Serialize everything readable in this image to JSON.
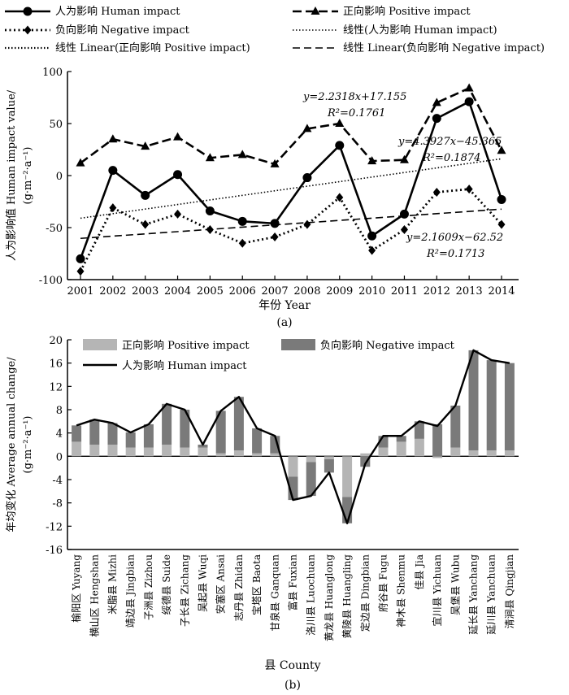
{
  "chart_data": [
    {
      "type": "line",
      "caption": "(a)",
      "xlabel": "年份 Year",
      "ylabel": "人为影响值 Human impact value/",
      "ylabel_unit": "(g·m⁻²·a⁻¹)",
      "ylim": [
        -100,
        100
      ],
      "yticks": [
        -100,
        -50,
        0,
        50,
        100
      ],
      "x": [
        "2001",
        "2002",
        "2003",
        "2004",
        "2005",
        "2006",
        "2007",
        "2008",
        "2009",
        "2010",
        "2011",
        "2012",
        "2013",
        "2014"
      ],
      "series": [
        {
          "name": "人为影响 Human impact",
          "style": "solid-circle",
          "values": [
            -80,
            5,
            -19,
            1,
            -34,
            -44,
            -46,
            -2,
            29,
            -58,
            -37,
            55,
            71,
            -23
          ]
        },
        {
          "name": "正向影响 Positive impact",
          "style": "dash-triangle",
          "values": [
            12,
            35,
            28,
            37,
            17,
            20,
            11,
            45,
            50,
            14,
            15,
            70,
            84,
            24
          ]
        },
        {
          "name": "负向影响 Negative impact",
          "style": "dot-diamond",
          "values": [
            -92,
            -31,
            -47,
            -37,
            -52,
            -65,
            -59,
            -47,
            -21,
            -72,
            -52,
            -16,
            -13,
            -47
          ]
        }
      ],
      "trendlines": [
        {
          "name": "线性(人为影响 Human impact)",
          "style": "dot",
          "slope": 4.3927,
          "intercept": -45.365,
          "equation": "y=4.3927x−45.365",
          "r2": "R²=0.1874"
        },
        {
          "name": "线性 Linear(正向影响 Positive impact)",
          "style": "dense-dot",
          "slope": 2.2318,
          "intercept": 17.155,
          "equation": "y=2.2318x+17.155",
          "r2": "R²=0.1761"
        },
        {
          "name": "线性 Linear(负向影响 Negative impact)",
          "style": "dash",
          "slope": 2.1609,
          "intercept": -62.52,
          "equation": "y=2.1609x−62.52",
          "r2": "R²=0.1713"
        }
      ]
    },
    {
      "type": "bar",
      "caption": "(b)",
      "xlabel": "县 County",
      "ylabel": "年均变化 Average annual change/",
      "ylabel_unit": "(g·m⁻²·a⁻¹)",
      "ylim": [
        -16,
        20
      ],
      "yticks": [
        -16,
        -12,
        -8,
        -4,
        0,
        4,
        8,
        12,
        16,
        20
      ],
      "categories": [
        "榆阳区 Yuyang",
        "横山区 Hengshan",
        "米脂县 Mizhi",
        "靖边县 Jingbian",
        "子洲县 Zizhou",
        "绥德县 Suide",
        "子长县 Zichang",
        "吴起县 Wuqi",
        "安塞区 Ansai",
        "志丹县 Zhidan",
        "宝塔区 Baota",
        "甘泉县 Ganquan",
        "富县 Fuxian",
        "洛川县 Luochuan",
        "黄龙县 Huanglong",
        "黄陵县 Huangling",
        "定边县 Dingbian",
        "府谷县 Fugu",
        "神木县 Shenmu",
        "佳县 Jia",
        "宜川县 Yichuan",
        "吴堡县 Wubu",
        "延长县 Yanchang",
        "延川县 Yanchuan",
        "清涧县 Qingjian"
      ],
      "series": [
        {
          "name": "正向影响 Positive impact",
          "values": [
            2.5,
            2.0,
            2.0,
            1.5,
            1.5,
            2.0,
            1.5,
            1.5,
            0.5,
            1.0,
            0.5,
            0.5,
            -3.5,
            -1.0,
            -0.5,
            -7.0,
            0.5,
            1.5,
            2.5,
            3.0,
            -0.3,
            1.5,
            1.0,
            1.0,
            1.0
          ]
        },
        {
          "name": "负向影响 Negative impact",
          "values": [
            2.8,
            4.3,
            3.7,
            2.6,
            4.0,
            7.0,
            6.5,
            0.5,
            7.3,
            9.2,
            4.3,
            3.0,
            -4.0,
            -5.8,
            -2.3,
            -4.5,
            -1.8,
            2.0,
            1.0,
            3.0,
            5.5,
            7.2,
            17.2,
            15.5,
            15.0
          ]
        },
        {
          "name": "人为影响 Human impact",
          "values": [
            5.3,
            6.3,
            5.7,
            4.1,
            5.5,
            9.0,
            8.0,
            2.0,
            7.8,
            10.2,
            4.8,
            3.5,
            -7.5,
            -6.8,
            -2.8,
            -11.5,
            -1.3,
            3.5,
            3.5,
            6.0,
            5.2,
            8.7,
            18.2,
            16.5,
            16.0
          ]
        }
      ]
    }
  ]
}
